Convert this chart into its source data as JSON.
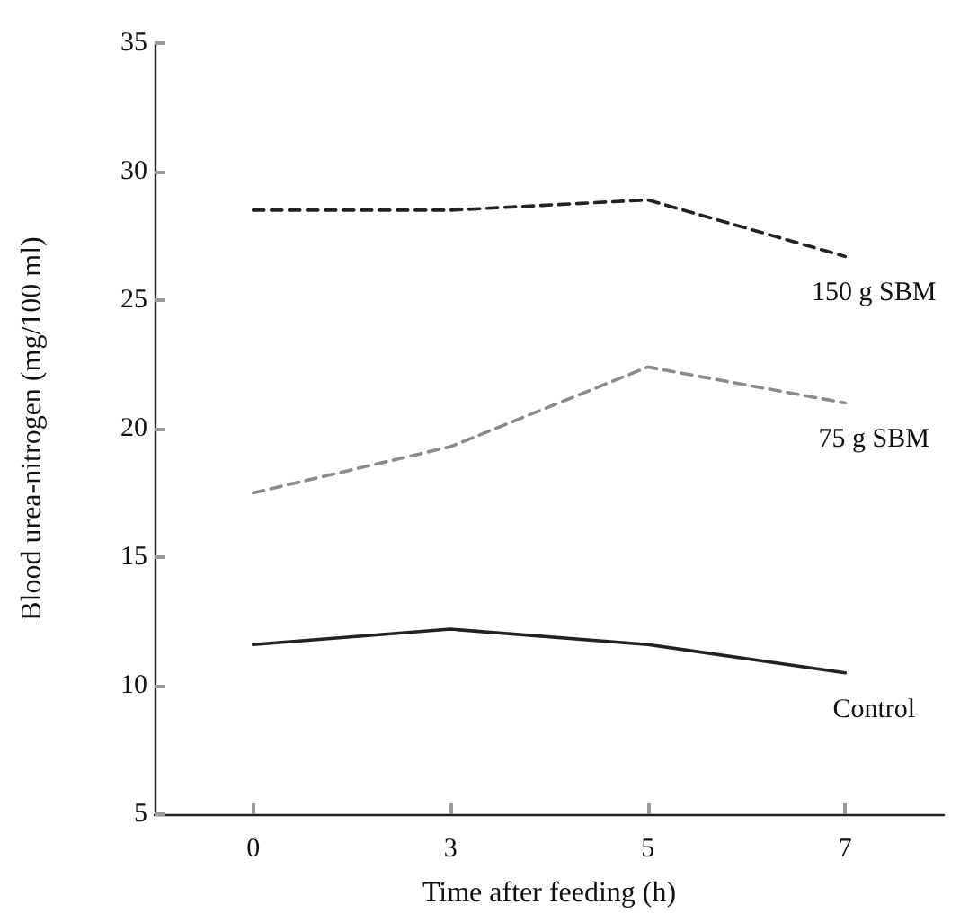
{
  "chart_data": {
    "type": "line",
    "xlabel": "Time after feeding (h)",
    "ylabel": "Blood urea-nitrogen (mg/100 ml)",
    "categories": [
      "0",
      "3",
      "5",
      "7"
    ],
    "series": [
      {
        "name": "150 g SBM",
        "color": "#222222",
        "line_style": "dashed",
        "values": [
          28.5,
          28.5,
          28.9,
          26.7
        ]
      },
      {
        "name": "75 g SBM",
        "color": "#8a8a8a",
        "line_style": "dashed",
        "values": [
          17.5,
          19.3,
          22.4,
          21.0
        ]
      },
      {
        "name": "Control",
        "color": "#222222",
        "line_style": "solid",
        "values": [
          11.6,
          12.2,
          11.6,
          10.5
        ]
      }
    ],
    "ylim": [
      5,
      35
    ],
    "yticks": [
      5,
      10,
      15,
      20,
      25,
      30,
      35
    ],
    "grid": false,
    "legend": false,
    "marker": "none"
  }
}
